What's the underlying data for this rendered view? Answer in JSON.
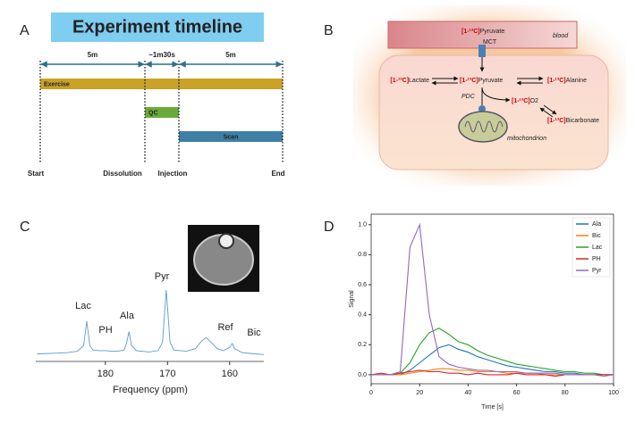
{
  "panels": [
    "A",
    "B",
    "C",
    "D"
  ],
  "timeline": {
    "title": "Experiment timeline",
    "durations": [
      "5m",
      "~1m30s",
      "5m"
    ],
    "bars": [
      {
        "label": "Exercise",
        "color": "#c9a227"
      },
      {
        "label": "QC",
        "color": "#6aaa3a"
      },
      {
        "label": "Scan",
        "color": "#3f7fa6"
      }
    ],
    "events": [
      "Start",
      "Dissolution",
      "Injection",
      "End"
    ]
  },
  "pathway": {
    "nodes": [
      {
        "tag": "[1-¹³C]",
        "name": "Pyruvate"
      },
      {
        "tag": "[1-¹³C]",
        "name": "Lactate"
      },
      {
        "tag": "[1-¹³C]",
        "name": "Pyruvate"
      },
      {
        "tag": "[1-¹³C]",
        "name": "Alanine"
      },
      {
        "tag": "[1-¹³C]",
        "name": "O2"
      },
      {
        "tag": "[1-¹³C]",
        "name": "Bicarbonate"
      }
    ],
    "labels": [
      "blood",
      "MCT",
      "PDC",
      "mitochondrion"
    ]
  },
  "chart_data": [
    {
      "type": "line",
      "xlabel": "Frequency (ppm)",
      "color": "#5b9bd5",
      "x": [
        191,
        188,
        186,
        184.5,
        183.5,
        183,
        182.5,
        182,
        181,
        180,
        179,
        178,
        177,
        176.6,
        176.2,
        175.8,
        175,
        173,
        171.5,
        170.8,
        170.2,
        169.6,
        169,
        167,
        165.5,
        164.5,
        163.8,
        163,
        162,
        161,
        160,
        159.6,
        159.2,
        158,
        156,
        154.5
      ],
      "values": [
        0.02,
        0.03,
        0.04,
        0.06,
        0.15,
        0.52,
        0.15,
        0.08,
        0.07,
        0.07,
        0.06,
        0.06,
        0.08,
        0.18,
        0.36,
        0.15,
        0.07,
        0.05,
        0.07,
        0.2,
        1.0,
        0.2,
        0.08,
        0.06,
        0.1,
        0.22,
        0.27,
        0.2,
        0.1,
        0.07,
        0.12,
        0.18,
        0.1,
        0.04,
        0.02,
        0.01
      ],
      "xlim": [
        191.2,
        154.5
      ],
      "xticks": [
        180,
        170,
        160
      ],
      "annotations": [
        "Lac",
        "PH",
        "Ala",
        "Pyr",
        "Ref",
        "Bic"
      ]
    },
    {
      "type": "line",
      "xlabel": "Time [s]",
      "ylabel": "Signal",
      "legend": "upper right",
      "x": [
        0,
        4,
        8,
        12,
        16,
        20,
        24,
        28,
        32,
        36,
        40,
        44,
        48,
        52,
        56,
        60,
        64,
        68,
        72,
        76,
        80,
        84,
        88,
        92,
        96,
        100
      ],
      "xlim": [
        0,
        100
      ],
      "xticks": [
        0,
        20,
        40,
        60,
        80,
        100
      ],
      "ylim": [
        -0.06,
        1.07
      ],
      "yticks": [
        {
          "value": 0,
          "label": "0.0"
        },
        {
          "value": 0.2,
          "label": "0.2"
        },
        {
          "value": 0.4,
          "label": "0.4"
        },
        {
          "value": 0.6,
          "label": "0.6"
        },
        {
          "value": 0.8,
          "label": "0.8"
        },
        {
          "value": 1.0,
          "label": "1.0"
        }
      ],
      "series": [
        {
          "name": "Ala",
          "color": "#1f77b4",
          "values": [
            0,
            0,
            0,
            0,
            0.03,
            0.08,
            0.13,
            0.18,
            0.2,
            0.17,
            0.15,
            0.12,
            0.1,
            0.08,
            0.06,
            0.05,
            0.04,
            0.03,
            0.02,
            0.02,
            0.01,
            0.01,
            0,
            0,
            0,
            0
          ]
        },
        {
          "name": "Bic",
          "color": "#ff7f0e",
          "values": [
            0,
            0,
            0,
            0,
            0.01,
            0.02,
            0.03,
            0.04,
            0.04,
            0.03,
            0.03,
            0.02,
            0.02,
            0.02,
            0.01,
            0.01,
            0.01,
            0.01,
            0,
            0,
            0,
            0,
            0,
            0,
            0,
            0
          ]
        },
        {
          "name": "Lac",
          "color": "#2ca02c",
          "values": [
            0,
            0,
            0,
            0.01,
            0.08,
            0.2,
            0.28,
            0.31,
            0.27,
            0.22,
            0.2,
            0.16,
            0.13,
            0.11,
            0.09,
            0.07,
            0.06,
            0.05,
            0.04,
            0.03,
            0.02,
            0.02,
            0.01,
            0.01,
            0,
            0
          ]
        },
        {
          "name": "PH",
          "color": "#d62728",
          "values": [
            0,
            0.01,
            0,
            0.01,
            0.02,
            0.03,
            0.02,
            0.02,
            0.01,
            0.01,
            0,
            0.01,
            0,
            0,
            0,
            0.01,
            0,
            0,
            0,
            -0.01,
            0,
            0,
            0,
            0,
            0,
            0
          ]
        },
        {
          "name": "Pyr",
          "color": "#9467bd",
          "values": [
            0,
            0,
            0,
            0.02,
            0.85,
            1.0,
            0.4,
            0.12,
            0.07,
            0.05,
            0.04,
            0.03,
            0.03,
            0.02,
            0.02,
            0.02,
            0.01,
            0.01,
            0.01,
            0.01,
            0,
            0,
            0,
            0,
            -0.01,
            0
          ]
        }
      ]
    }
  ]
}
